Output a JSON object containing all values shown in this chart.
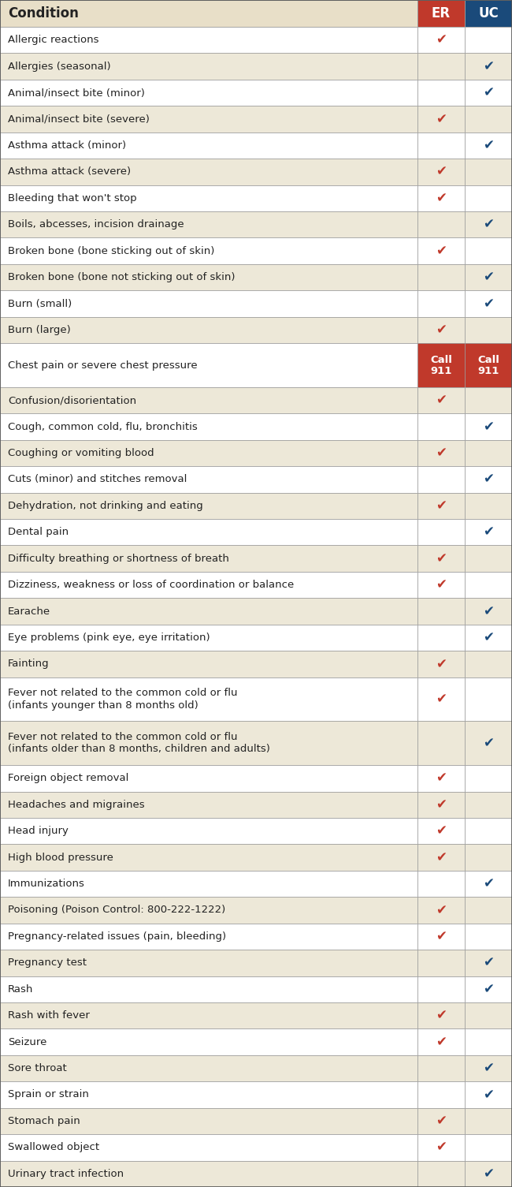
{
  "header": "Condition",
  "col1_label": "ER",
  "col2_label": "UC",
  "header_bg": "#e8dfc8",
  "er_header_bg": "#c0392b",
  "uc_header_bg": "#1a4a7a",
  "er_color": "#c0392b",
  "uc_color": "#1a4a7a",
  "row_colors": [
    "#ffffff",
    "#ede8d8"
  ],
  "border_color": "#999999",
  "call911_bg": "#c0392b",
  "rows": [
    {
      "condition": "Allergic reactions",
      "er": true,
      "uc": false,
      "special": null
    },
    {
      "condition": "Allergies (seasonal)",
      "er": false,
      "uc": true,
      "special": null
    },
    {
      "condition": "Animal/insect bite (minor)",
      "er": false,
      "uc": true,
      "special": null
    },
    {
      "condition": "Animal/insect bite (severe)",
      "er": true,
      "uc": false,
      "special": null
    },
    {
      "condition": "Asthma attack (minor)",
      "er": false,
      "uc": true,
      "special": null
    },
    {
      "condition": "Asthma attack (severe)",
      "er": true,
      "uc": false,
      "special": null
    },
    {
      "condition": "Bleeding that won't stop",
      "er": true,
      "uc": false,
      "special": null
    },
    {
      "condition": "Boils, abcesses, incision drainage",
      "er": false,
      "uc": true,
      "special": null
    },
    {
      "condition": "Broken bone (bone sticking out of skin)",
      "er": true,
      "uc": false,
      "special": null
    },
    {
      "condition": "Broken bone (bone not sticking out of skin)",
      "er": false,
      "uc": true,
      "special": null
    },
    {
      "condition": "Burn (small)",
      "er": false,
      "uc": true,
      "special": null
    },
    {
      "condition": "Burn (large)",
      "er": true,
      "uc": false,
      "special": null
    },
    {
      "condition": "Chest pain or severe chest pressure",
      "er": false,
      "uc": false,
      "special": "call911"
    },
    {
      "condition": "Confusion/disorientation",
      "er": true,
      "uc": false,
      "special": null
    },
    {
      "condition": "Cough, common cold, flu, bronchitis",
      "er": false,
      "uc": true,
      "special": null
    },
    {
      "condition": "Coughing or vomiting blood",
      "er": true,
      "uc": false,
      "special": null
    },
    {
      "condition": "Cuts (minor) and stitches removal",
      "er": false,
      "uc": true,
      "special": null
    },
    {
      "condition": "Dehydration, not drinking and eating",
      "er": true,
      "uc": false,
      "special": null
    },
    {
      "condition": "Dental pain",
      "er": false,
      "uc": true,
      "special": null
    },
    {
      "condition": "Difficulty breathing or shortness of breath",
      "er": true,
      "uc": false,
      "special": null
    },
    {
      "condition": "Dizziness, weakness or loss of coordination or balance",
      "er": true,
      "uc": false,
      "special": null
    },
    {
      "condition": "Earache",
      "er": false,
      "uc": true,
      "special": null
    },
    {
      "condition": "Eye problems (pink eye, eye irritation)",
      "er": false,
      "uc": true,
      "special": null
    },
    {
      "condition": "Fainting",
      "er": true,
      "uc": false,
      "special": null
    },
    {
      "condition": "Fever not related to the common cold or flu\n(infants younger than 8 months old)",
      "er": true,
      "uc": false,
      "special": null
    },
    {
      "condition": "Fever not related to the common cold or flu\n(infants older than 8 months, children and adults)",
      "er": false,
      "uc": true,
      "special": null
    },
    {
      "condition": "Foreign object removal",
      "er": true,
      "uc": false,
      "special": null
    },
    {
      "condition": "Headaches and migraines",
      "er": true,
      "uc": false,
      "special": null
    },
    {
      "condition": "Head injury",
      "er": true,
      "uc": false,
      "special": null
    },
    {
      "condition": "High blood pressure",
      "er": true,
      "uc": false,
      "special": null
    },
    {
      "condition": "Immunizations",
      "er": false,
      "uc": true,
      "special": null
    },
    {
      "condition": "Poisoning (Poison Control: 800-222-1222)",
      "er": true,
      "uc": false,
      "special": null
    },
    {
      "condition": "Pregnancy-related issues (pain, bleeding)",
      "er": true,
      "uc": false,
      "special": null
    },
    {
      "condition": "Pregnancy test",
      "er": false,
      "uc": true,
      "special": null
    },
    {
      "condition": "Rash",
      "er": false,
      "uc": true,
      "special": null
    },
    {
      "condition": "Rash with fever",
      "er": true,
      "uc": false,
      "special": null
    },
    {
      "condition": "Seizure",
      "er": true,
      "uc": false,
      "special": null
    },
    {
      "condition": "Sore throat",
      "er": false,
      "uc": true,
      "special": null
    },
    {
      "condition": "Sprain or strain",
      "er": false,
      "uc": true,
      "special": null
    },
    {
      "condition": "Stomach pain",
      "er": true,
      "uc": false,
      "special": null
    },
    {
      "condition": "Swallowed object",
      "er": true,
      "uc": false,
      "special": null
    },
    {
      "condition": "Urinary tract infection",
      "er": false,
      "uc": true,
      "special": null
    }
  ],
  "figw": 6.5,
  "figh": 15.05,
  "dpi": 100
}
